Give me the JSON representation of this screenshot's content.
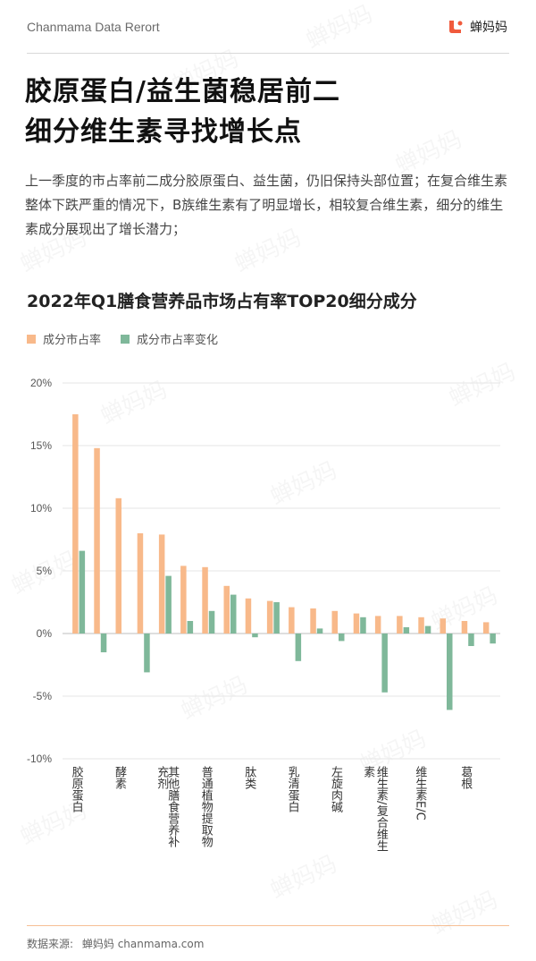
{
  "header": {
    "left_text": "Chanmama Data Rerort",
    "right_text": "蝉妈妈",
    "logo_icon": "chanmama-logo-icon"
  },
  "title_lines": [
    "胶原蛋白/益生菌稳居前二",
    "细分维生素寻找增长点"
  ],
  "description": "上一季度的市占率前二成分胶原蛋白、益生菌，仍旧保持头部位置；在复合维生素整体下跌严重的情况下，B族维生素有了明显增长，相较复合维生素，细分的维生素成分展现出了增长潜力；",
  "footer": {
    "label": "数据来源:",
    "source": "蝉妈妈 chanmama.com"
  },
  "watermark_text": "蝉妈妈",
  "colors": {
    "share": "#f8b98a",
    "change": "#7fb89a",
    "accent": "#f08a3c"
  },
  "chart_data": {
    "type": "bar",
    "title": "2022年Q1膳食营养品市场占有率TOP20细分成分",
    "ylim": [
      -10,
      20
    ],
    "yticks": [
      -10,
      -5,
      0,
      5,
      10,
      15,
      20
    ],
    "ytick_labels": [
      "-10%",
      "-5%",
      "0%",
      "5%",
      "10%",
      "15%",
      "20%"
    ],
    "grid": true,
    "legend_position": "top-left",
    "x_labels": [
      {
        "text": "胶原蛋白",
        "at": 0
      },
      {
        "text": "酵素",
        "at": 2
      },
      {
        "text": "充剂",
        "at": 3.95
      },
      {
        "text": "其他膳食营养补",
        "at": 4.45
      },
      {
        "text": "普通植物提取物",
        "at": 6
      },
      {
        "text": "肽类",
        "at": 8
      },
      {
        "text": "乳清蛋白",
        "at": 10
      },
      {
        "text": "左旋肉碱",
        "at": 12
      },
      {
        "text": "素",
        "at": 13.5
      },
      {
        "text": "维生素/复合维生",
        "at": 14.1
      },
      {
        "text": "维生素E/C",
        "at": 15.9
      },
      {
        "text": "葛根",
        "at": 18
      }
    ],
    "series": [
      {
        "name": "成分市占率",
        "values": [
          17.5,
          14.8,
          10.8,
          8.0,
          7.9,
          5.4,
          5.3,
          3.8,
          2.8,
          2.6,
          2.1,
          2.0,
          1.8,
          1.6,
          1.4,
          1.4,
          1.3,
          1.2,
          1.0,
          0.9
        ]
      },
      {
        "name": "成分市占率变化",
        "values": [
          6.6,
          -1.5,
          0,
          -3.1,
          4.6,
          1.0,
          1.8,
          3.1,
          -0.3,
          2.5,
          -2.2,
          0.4,
          -0.6,
          1.3,
          -4.7,
          0.5,
          0.6,
          -6.1,
          -1.0,
          -0.8
        ]
      }
    ]
  }
}
